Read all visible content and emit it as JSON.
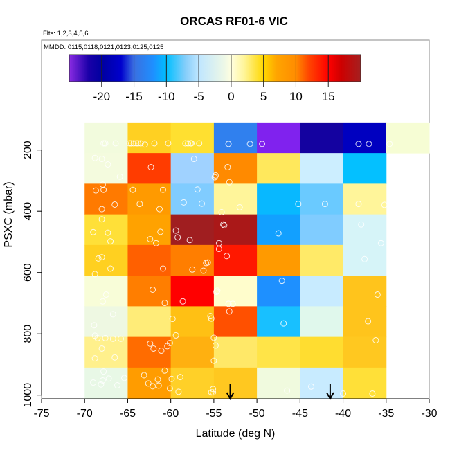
{
  "chart_data": {
    "type": "heatmap",
    "title": "ORCAS RF01-6 VIC",
    "subtitle": "Flts: 1,2,3,4,5,6",
    "annotation": "MMDD: 0115,0118,0121,0123,0125,0125",
    "xlabel": "Latitude (deg N)",
    "ylabel": "PSXC (mbar)",
    "xlim": [
      -75,
      -30
    ],
    "x_ticks": [
      -75,
      -70,
      -65,
      -60,
      -55,
      -50,
      -45,
      -40,
      -35,
      -30
    ],
    "y_ticks": [
      200,
      400,
      600,
      800,
      1000
    ],
    "y_reversed": true,
    "x_bin_edges": [
      -70,
      -65,
      -60,
      -55,
      -50,
      -45,
      -40,
      -35,
      -30
    ],
    "y_bin_edges": [
      110,
      210,
      310,
      410,
      510,
      610,
      710,
      810,
      910,
      1010
    ],
    "colorbar": {
      "range": [
        -25,
        20
      ],
      "ticks": [
        -20,
        -15,
        -10,
        -5,
        0,
        5,
        10,
        15
      ],
      "stops": [
        [
          -25,
          "#8A2BE2"
        ],
        [
          -22,
          "#1A00A8"
        ],
        [
          -20,
          "#0000A0"
        ],
        [
          -17,
          "#0000CD"
        ],
        [
          -15,
          "#3A6FE0"
        ],
        [
          -12,
          "#1E90FF"
        ],
        [
          -10,
          "#00BFFF"
        ],
        [
          -7,
          "#87CEFA"
        ],
        [
          -5,
          "#BFE6FF"
        ],
        [
          -1,
          "#EEF8E6"
        ],
        [
          0,
          "#FFFFE0"
        ],
        [
          2,
          "#FFF59A"
        ],
        [
          5,
          "#FFD700"
        ],
        [
          7,
          "#FFA500"
        ],
        [
          10,
          "#FF8C00"
        ],
        [
          12,
          "#FF4500"
        ],
        [
          15,
          "#FF0000"
        ],
        [
          17,
          "#CD0000"
        ],
        [
          20,
          "#A52020"
        ]
      ]
    },
    "cells": [
      {
        "row": 0,
        "values": [
          0.5,
          6,
          5,
          -13,
          -24,
          -21.5,
          -20,
          0.3
        ],
        "colors": [
          "#F2FBDD",
          "#FFD022",
          "#FFE030",
          "#3080EE",
          "#8022EE",
          "#1402A0",
          "#0000C0",
          "#F6FDD4"
        ]
      },
      {
        "row": 1,
        "values": [
          0.4,
          12.5,
          -6,
          9,
          4,
          -4,
          -10,
          null
        ],
        "colors": [
          "#F4FBDE",
          "#FF3C00",
          "#A0D2FF",
          "#FF8A00",
          "#FFE85C",
          "#CCEEFF",
          "#04C0FF",
          null
        ]
      },
      {
        "row": 2,
        "values": [
          10,
          8,
          -7,
          2,
          -9.5,
          -8,
          2,
          null
        ],
        "colors": [
          "#FF7A00",
          "#FF9A00",
          "#80CCFF",
          "#FFF59A",
          "#08B8FF",
          "#6ACAFF",
          "#FFF59A",
          null
        ]
      },
      {
        "row": 3,
        "values": [
          4.5,
          7.5,
          19,
          18.5,
          -11,
          -7,
          -2.5,
          null
        ],
        "colors": [
          "#FFE038",
          "#FFA200",
          "#A01E20",
          "#AA1818",
          "#12A0FF",
          "#80CCFF",
          "#D6F4F8",
          null
        ]
      },
      {
        "row": 4,
        "values": [
          5.5,
          11,
          10,
          14,
          8,
          3.5,
          -2.5,
          null
        ],
        "colors": [
          "#FFD020",
          "#FF6000",
          "#FF7E00",
          "#FF1800",
          "#FF9A00",
          "#FFEA68",
          "#D6F4F8",
          null
        ]
      },
      {
        "row": 5,
        "values": [
          0.5,
          10,
          15,
          0.8,
          -11.5,
          -4.5,
          6.5,
          null
        ],
        "colors": [
          "#F8FDD8",
          "#FF7E00",
          "#FF0000",
          "#FFFDCC",
          "#1E90FF",
          "#C8EBFF",
          "#FFC41C",
          null
        ]
      },
      {
        "row": 6,
        "values": [
          -1,
          3,
          6.5,
          11.5,
          -10,
          -1.5,
          6.5,
          null
        ],
        "colors": [
          "#EEF8E2",
          "#FFEC78",
          "#FFC014",
          "#FF5000",
          "#18C0FF",
          "#E0F8EC",
          "#FFC41C",
          null
        ]
      },
      {
        "row": 7,
        "values": [
          2.5,
          10.5,
          7,
          3.5,
          4.2,
          5,
          6,
          null
        ],
        "colors": [
          "#FFF08C",
          "#FF6C00",
          "#FFB010",
          "#FFE868",
          "#FFE448",
          "#FFDD30",
          "#FFC820",
          null
        ]
      },
      {
        "row": 8,
        "values": [
          -1,
          8,
          5.5,
          6,
          -0.5,
          -4.5,
          4.5,
          null
        ],
        "colors": [
          "#E8F8E6",
          "#FF9C00",
          "#FFD028",
          "#FFC820",
          "#F0FADE",
          "#C8EBFF",
          "#FFE038",
          null
        ]
      }
    ],
    "points": [
      [
        -67.8,
        178
      ],
      [
        -67.6,
        178
      ],
      [
        -66.4,
        178
      ],
      [
        -64.8,
        178
      ],
      [
        -64.6,
        178
      ],
      [
        -64.3,
        178
      ],
      [
        -64.0,
        178
      ],
      [
        -63.8,
        178
      ],
      [
        -63.5,
        178
      ],
      [
        -63.0,
        182
      ],
      [
        -61.9,
        178
      ],
      [
        -60.3,
        178
      ],
      [
        -58.3,
        178
      ],
      [
        -58.0,
        178
      ],
      [
        -57.7,
        178
      ],
      [
        -57.6,
        178
      ],
      [
        -56.7,
        178
      ],
      [
        -53.3,
        180
      ],
      [
        -50.8,
        180
      ],
      [
        -49.4,
        180
      ],
      [
        -38.2,
        180
      ],
      [
        -37.0,
        180
      ],
      [
        -34.6,
        180
      ],
      [
        -68.8,
        226
      ],
      [
        -68.0,
        229
      ],
      [
        -67.3,
        247
      ],
      [
        -65.9,
        287
      ],
      [
        -67.9,
        313
      ],
      [
        -62.3,
        256
      ],
      [
        -57.3,
        229
      ],
      [
        -54.8,
        283
      ],
      [
        -54.9,
        289
      ],
      [
        -53.2,
        305
      ],
      [
        -53.4,
        256
      ],
      [
        -68.7,
        332
      ],
      [
        -67.8,
        330
      ],
      [
        -64.4,
        330
      ],
      [
        -60.9,
        330
      ],
      [
        -66.5,
        378
      ],
      [
        -68.0,
        393
      ],
      [
        -63.6,
        376
      ],
      [
        -61.3,
        393
      ],
      [
        -56.9,
        329
      ],
      [
        -58.5,
        371
      ],
      [
        -56.4,
        375
      ],
      [
        -52.0,
        387
      ],
      [
        -54.1,
        403
      ],
      [
        -45.2,
        376
      ],
      [
        -42.1,
        376
      ],
      [
        -38.2,
        376
      ],
      [
        -35.2,
        379
      ],
      [
        -68.0,
        426
      ],
      [
        -69.0,
        468
      ],
      [
        -67.3,
        470
      ],
      [
        -67.0,
        498
      ],
      [
        -61.2,
        467
      ],
      [
        -62.4,
        491
      ],
      [
        -61.7,
        504
      ],
      [
        -59.4,
        463
      ],
      [
        -59.2,
        485
      ],
      [
        -57.8,
        494
      ],
      [
        -53.9,
        443
      ],
      [
        -53.8,
        446
      ],
      [
        -54.4,
        504
      ],
      [
        -47.5,
        472
      ],
      [
        -37.9,
        443
      ],
      [
        -35.6,
        504
      ],
      [
        -68.4,
        554
      ],
      [
        -68.0,
        550
      ],
      [
        -67.0,
        587
      ],
      [
        -68.8,
        605
      ],
      [
        -60.9,
        587
      ],
      [
        -54.4,
        523
      ],
      [
        -53.5,
        546
      ],
      [
        -57.5,
        590
      ],
      [
        -56.2,
        594
      ],
      [
        -55.9,
        569
      ],
      [
        -55.7,
        567
      ],
      [
        -37.5,
        556
      ],
      [
        -67.5,
        672
      ],
      [
        -67.9,
        694
      ],
      [
        -62.1,
        656
      ],
      [
        -60.7,
        699
      ],
      [
        -58.6,
        694
      ],
      [
        -54.6,
        659
      ],
      [
        -54.7,
        663
      ],
      [
        -53.3,
        702
      ],
      [
        -52.8,
        702
      ],
      [
        -47.1,
        627
      ],
      [
        -36.0,
        672
      ],
      [
        -66.7,
        736
      ],
      [
        -68.9,
        772
      ],
      [
        -68.8,
        806
      ],
      [
        -68.5,
        814
      ],
      [
        -67.6,
        814
      ],
      [
        -66.7,
        816
      ],
      [
        -65.8,
        816
      ],
      [
        -59.8,
        751
      ],
      [
        -59.4,
        805
      ],
      [
        -55.4,
        742
      ],
      [
        -55.3,
        750
      ],
      [
        -53.2,
        727
      ],
      [
        -46.9,
        766
      ],
      [
        -37.1,
        759
      ],
      [
        -68.0,
        848
      ],
      [
        -68.8,
        880
      ],
      [
        -66.5,
        877
      ],
      [
        -62.4,
        832
      ],
      [
        -62.0,
        848
      ],
      [
        -61.1,
        855
      ],
      [
        -60.4,
        840
      ],
      [
        -60.1,
        830
      ],
      [
        -55.0,
        813
      ],
      [
        -54.8,
        838
      ],
      [
        -55.0,
        888
      ],
      [
        -36.2,
        821
      ],
      [
        -67.8,
        923
      ],
      [
        -69.0,
        959
      ],
      [
        -67.9,
        952
      ],
      [
        -68.1,
        965
      ],
      [
        -67.2,
        946
      ],
      [
        -66.2,
        968
      ],
      [
        -65.4,
        944
      ],
      [
        -63.1,
        935
      ],
      [
        -62.6,
        962
      ],
      [
        -62.1,
        971
      ],
      [
        -61.5,
        949
      ],
      [
        -61.4,
        969
      ],
      [
        -60.7,
        920
      ],
      [
        -59.9,
        947
      ],
      [
        -58.9,
        941
      ],
      [
        -60.1,
        978
      ],
      [
        -59.1,
        989
      ],
      [
        -55.1,
        980
      ],
      [
        -55.1,
        991
      ],
      [
        -55.3,
        991
      ],
      [
        -46.5,
        985
      ],
      [
        -43.7,
        972
      ],
      [
        -40.0,
        995
      ],
      [
        -36.6,
        995
      ]
    ],
    "arrows_latitude": [
      -53.1,
      -41.5
    ],
    "grid": false
  }
}
